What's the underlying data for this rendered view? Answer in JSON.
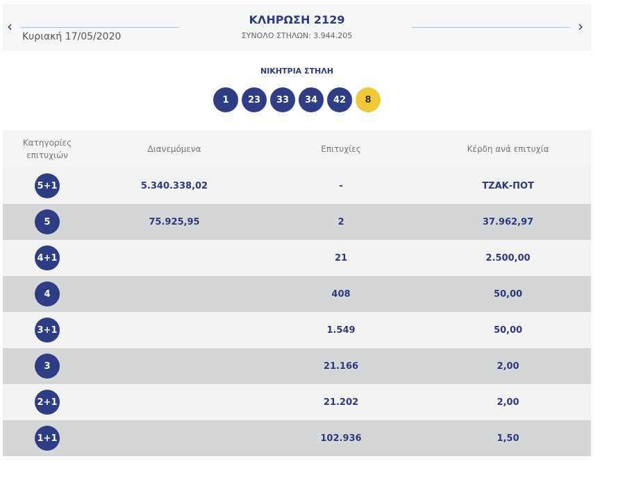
{
  "header": {
    "prev": "‹",
    "next": "›",
    "title": "ΚΛΗΡΩΣΗ 2129",
    "total_columns": "ΣΥΝΟΛΟ ΣΤΗΛΩΝ: 3.944.205",
    "date": "Κυριακή 17/05/2020"
  },
  "winning": {
    "label": "ΝΙΚΗΤΡΙΑ ΣΤΗΛΗ",
    "numbers": [
      "1",
      "23",
      "33",
      "34",
      "42"
    ],
    "bonus": "8"
  },
  "colors": {
    "primary": "#2e3d84",
    "bonus": "#f0c93a"
  },
  "table": {
    "headers": [
      "Κατηγορίες επιτυχιών",
      "Διανεμόμενα",
      "Επιτυχίες",
      "Κέρδη ανά επιτυχία"
    ],
    "rows": [
      {
        "cat": "5+1",
        "dist": "5.340.338,02",
        "wins": "-",
        "prize": "ΤΖΑΚ-ΠΟΤ"
      },
      {
        "cat": "5",
        "dist": "75.925,95",
        "wins": "2",
        "prize": "37.962,97"
      },
      {
        "cat": "4+1",
        "dist": "",
        "wins": "21",
        "prize": "2.500,00"
      },
      {
        "cat": "4",
        "dist": "",
        "wins": "408",
        "prize": "50,00"
      },
      {
        "cat": "3+1",
        "dist": "",
        "wins": "1.549",
        "prize": "50,00"
      },
      {
        "cat": "3",
        "dist": "",
        "wins": "21.166",
        "prize": "2,00"
      },
      {
        "cat": "2+1",
        "dist": "",
        "wins": "21.202",
        "prize": "2,00"
      },
      {
        "cat": "1+1",
        "dist": "",
        "wins": "102.936",
        "prize": "1,50"
      }
    ]
  }
}
